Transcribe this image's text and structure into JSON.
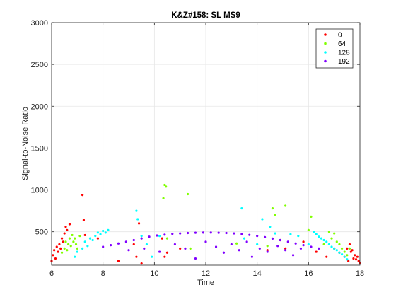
{
  "chart_data": {
    "type": "scatter",
    "title": "K&Z#158: SL MS9",
    "xlabel": "Time",
    "ylabel": "Signal-to-Noise Ratio",
    "xlim": [
      6,
      18
    ],
    "ylim": [
      100,
      3000
    ],
    "xticks": [
      6,
      8,
      10,
      12,
      14,
      16,
      18
    ],
    "yticks": [
      500,
      1000,
      1500,
      2000,
      2500,
      3000
    ],
    "grid": true,
    "legend_position": "top-right",
    "series": [
      {
        "name": "0",
        "color": "#ff0000",
        "points": [
          [
            6.0,
            150
          ],
          [
            6.05,
            220
          ],
          [
            6.1,
            280
          ],
          [
            6.15,
            180
          ],
          [
            6.2,
            320
          ],
          [
            6.25,
            260
          ],
          [
            6.3,
            350
          ],
          [
            6.35,
            300
          ],
          [
            6.4,
            420
          ],
          [
            6.45,
            380
          ],
          [
            6.5,
            480
          ],
          [
            6.55,
            560
          ],
          [
            6.6,
            520
          ],
          [
            6.7,
            590
          ],
          [
            7.2,
            940
          ],
          [
            7.25,
            640
          ],
          [
            7.3,
            460
          ],
          [
            7.8,
            420
          ],
          [
            8.6,
            150
          ],
          [
            9.2,
            350
          ],
          [
            9.3,
            200
          ],
          [
            9.4,
            600
          ],
          [
            9.5,
            120
          ],
          [
            10.3,
            420
          ],
          [
            10.4,
            200
          ],
          [
            10.5,
            250
          ],
          [
            11.0,
            300
          ],
          [
            14.4,
            280
          ],
          [
            14.9,
            400
          ],
          [
            15.1,
            300
          ],
          [
            15.8,
            380
          ],
          [
            16.3,
            260
          ],
          [
            16.7,
            200
          ],
          [
            17.0,
            300
          ],
          [
            17.2,
            250
          ],
          [
            17.4,
            200
          ],
          [
            17.5,
            300
          ],
          [
            17.55,
            150
          ],
          [
            17.6,
            350
          ],
          [
            17.65,
            260
          ],
          [
            17.7,
            280
          ],
          [
            17.75,
            180
          ],
          [
            17.8,
            220
          ],
          [
            17.85,
            170
          ],
          [
            17.9,
            200
          ],
          [
            17.95,
            150
          ],
          [
            18.0,
            130
          ]
        ]
      },
      {
        "name": "64",
        "color": "#80ff00",
        "points": [
          [
            6.4,
            250
          ],
          [
            6.5,
            300
          ],
          [
            6.55,
            380
          ],
          [
            6.6,
            280
          ],
          [
            6.65,
            350
          ],
          [
            6.7,
            420
          ],
          [
            6.75,
            330
          ],
          [
            6.8,
            460
          ],
          [
            6.85,
            380
          ],
          [
            6.9,
            420
          ],
          [
            6.95,
            350
          ],
          [
            7.0,
            300
          ],
          [
            7.1,
            450
          ],
          [
            10.35,
            900
          ],
          [
            10.4,
            1060
          ],
          [
            10.45,
            1040
          ],
          [
            10.5,
            420
          ],
          [
            11.3,
            950
          ],
          [
            11.4,
            300
          ],
          [
            13.2,
            360
          ],
          [
            14.4,
            330
          ],
          [
            14.6,
            780
          ],
          [
            14.7,
            700
          ],
          [
            15.1,
            810
          ],
          [
            16.0,
            520
          ],
          [
            16.1,
            680
          ],
          [
            16.6,
            350
          ],
          [
            16.8,
            500
          ],
          [
            16.9,
            420
          ],
          [
            17.0,
            480
          ],
          [
            17.1,
            380
          ],
          [
            17.2,
            350
          ],
          [
            17.3,
            300
          ],
          [
            17.4,
            260
          ],
          [
            17.5,
            220
          ],
          [
            17.6,
            300
          ]
        ]
      },
      {
        "name": "128",
        "color": "#00ffff",
        "points": [
          [
            6.9,
            200
          ],
          [
            7.0,
            260
          ],
          [
            7.2,
            300
          ],
          [
            7.3,
            380
          ],
          [
            7.4,
            330
          ],
          [
            7.5,
            420
          ],
          [
            7.6,
            400
          ],
          [
            7.7,
            450
          ],
          [
            7.8,
            490
          ],
          [
            7.9,
            470
          ],
          [
            8.0,
            510
          ],
          [
            8.1,
            490
          ],
          [
            8.2,
            520
          ],
          [
            9.3,
            750
          ],
          [
            9.35,
            650
          ],
          [
            9.5,
            450
          ],
          [
            9.7,
            350
          ],
          [
            9.9,
            200
          ],
          [
            10.2,
            450
          ],
          [
            13.4,
            780
          ],
          [
            13.5,
            420
          ],
          [
            14.0,
            350
          ],
          [
            14.2,
            650
          ],
          [
            14.5,
            560
          ],
          [
            14.7,
            480
          ],
          [
            15.3,
            470
          ],
          [
            15.6,
            450
          ],
          [
            16.0,
            350
          ],
          [
            16.2,
            500
          ],
          [
            16.3,
            470
          ],
          [
            16.4,
            440
          ],
          [
            16.5,
            420
          ],
          [
            16.6,
            400
          ],
          [
            16.7,
            380
          ],
          [
            16.8,
            350
          ],
          [
            16.9,
            320
          ],
          [
            17.0,
            300
          ],
          [
            17.1,
            280
          ],
          [
            17.2,
            250
          ],
          [
            17.3,
            230
          ],
          [
            17.4,
            200
          ],
          [
            17.5,
            170
          ]
        ]
      },
      {
        "name": "192",
        "color": "#8000ff",
        "points": [
          [
            8.0,
            320
          ],
          [
            8.3,
            340
          ],
          [
            8.6,
            360
          ],
          [
            8.9,
            380
          ],
          [
            9.2,
            400
          ],
          [
            9.5,
            420
          ],
          [
            9.8,
            440
          ],
          [
            10.1,
            455
          ],
          [
            10.4,
            465
          ],
          [
            10.7,
            475
          ],
          [
            11.0,
            480
          ],
          [
            11.3,
            485
          ],
          [
            11.6,
            488
          ],
          [
            11.9,
            490
          ],
          [
            12.2,
            490
          ],
          [
            12.5,
            488
          ],
          [
            12.8,
            485
          ],
          [
            13.1,
            480
          ],
          [
            13.4,
            472
          ],
          [
            13.7,
            462
          ],
          [
            14.0,
            450
          ],
          [
            14.3,
            435
          ],
          [
            14.6,
            418
          ],
          [
            14.9,
            400
          ],
          [
            15.2,
            380
          ],
          [
            15.5,
            360
          ],
          [
            15.8,
            340
          ],
          [
            16.1,
            320
          ],
          [
            16.4,
            300
          ],
          [
            9.0,
            280
          ],
          [
            9.6,
            300
          ],
          [
            10.2,
            260
          ],
          [
            10.8,
            350
          ],
          [
            11.2,
            300
          ],
          [
            11.6,
            180
          ],
          [
            12.0,
            380
          ],
          [
            12.4,
            320
          ],
          [
            12.7,
            250
          ],
          [
            13.0,
            350
          ],
          [
            13.3,
            280
          ],
          [
            13.6,
            380
          ],
          [
            13.8,
            200
          ],
          [
            14.1,
            300
          ],
          [
            14.4,
            260
          ],
          [
            14.8,
            330
          ],
          [
            15.1,
            280
          ],
          [
            15.4,
            220
          ],
          [
            15.7,
            300
          ]
        ]
      }
    ]
  }
}
